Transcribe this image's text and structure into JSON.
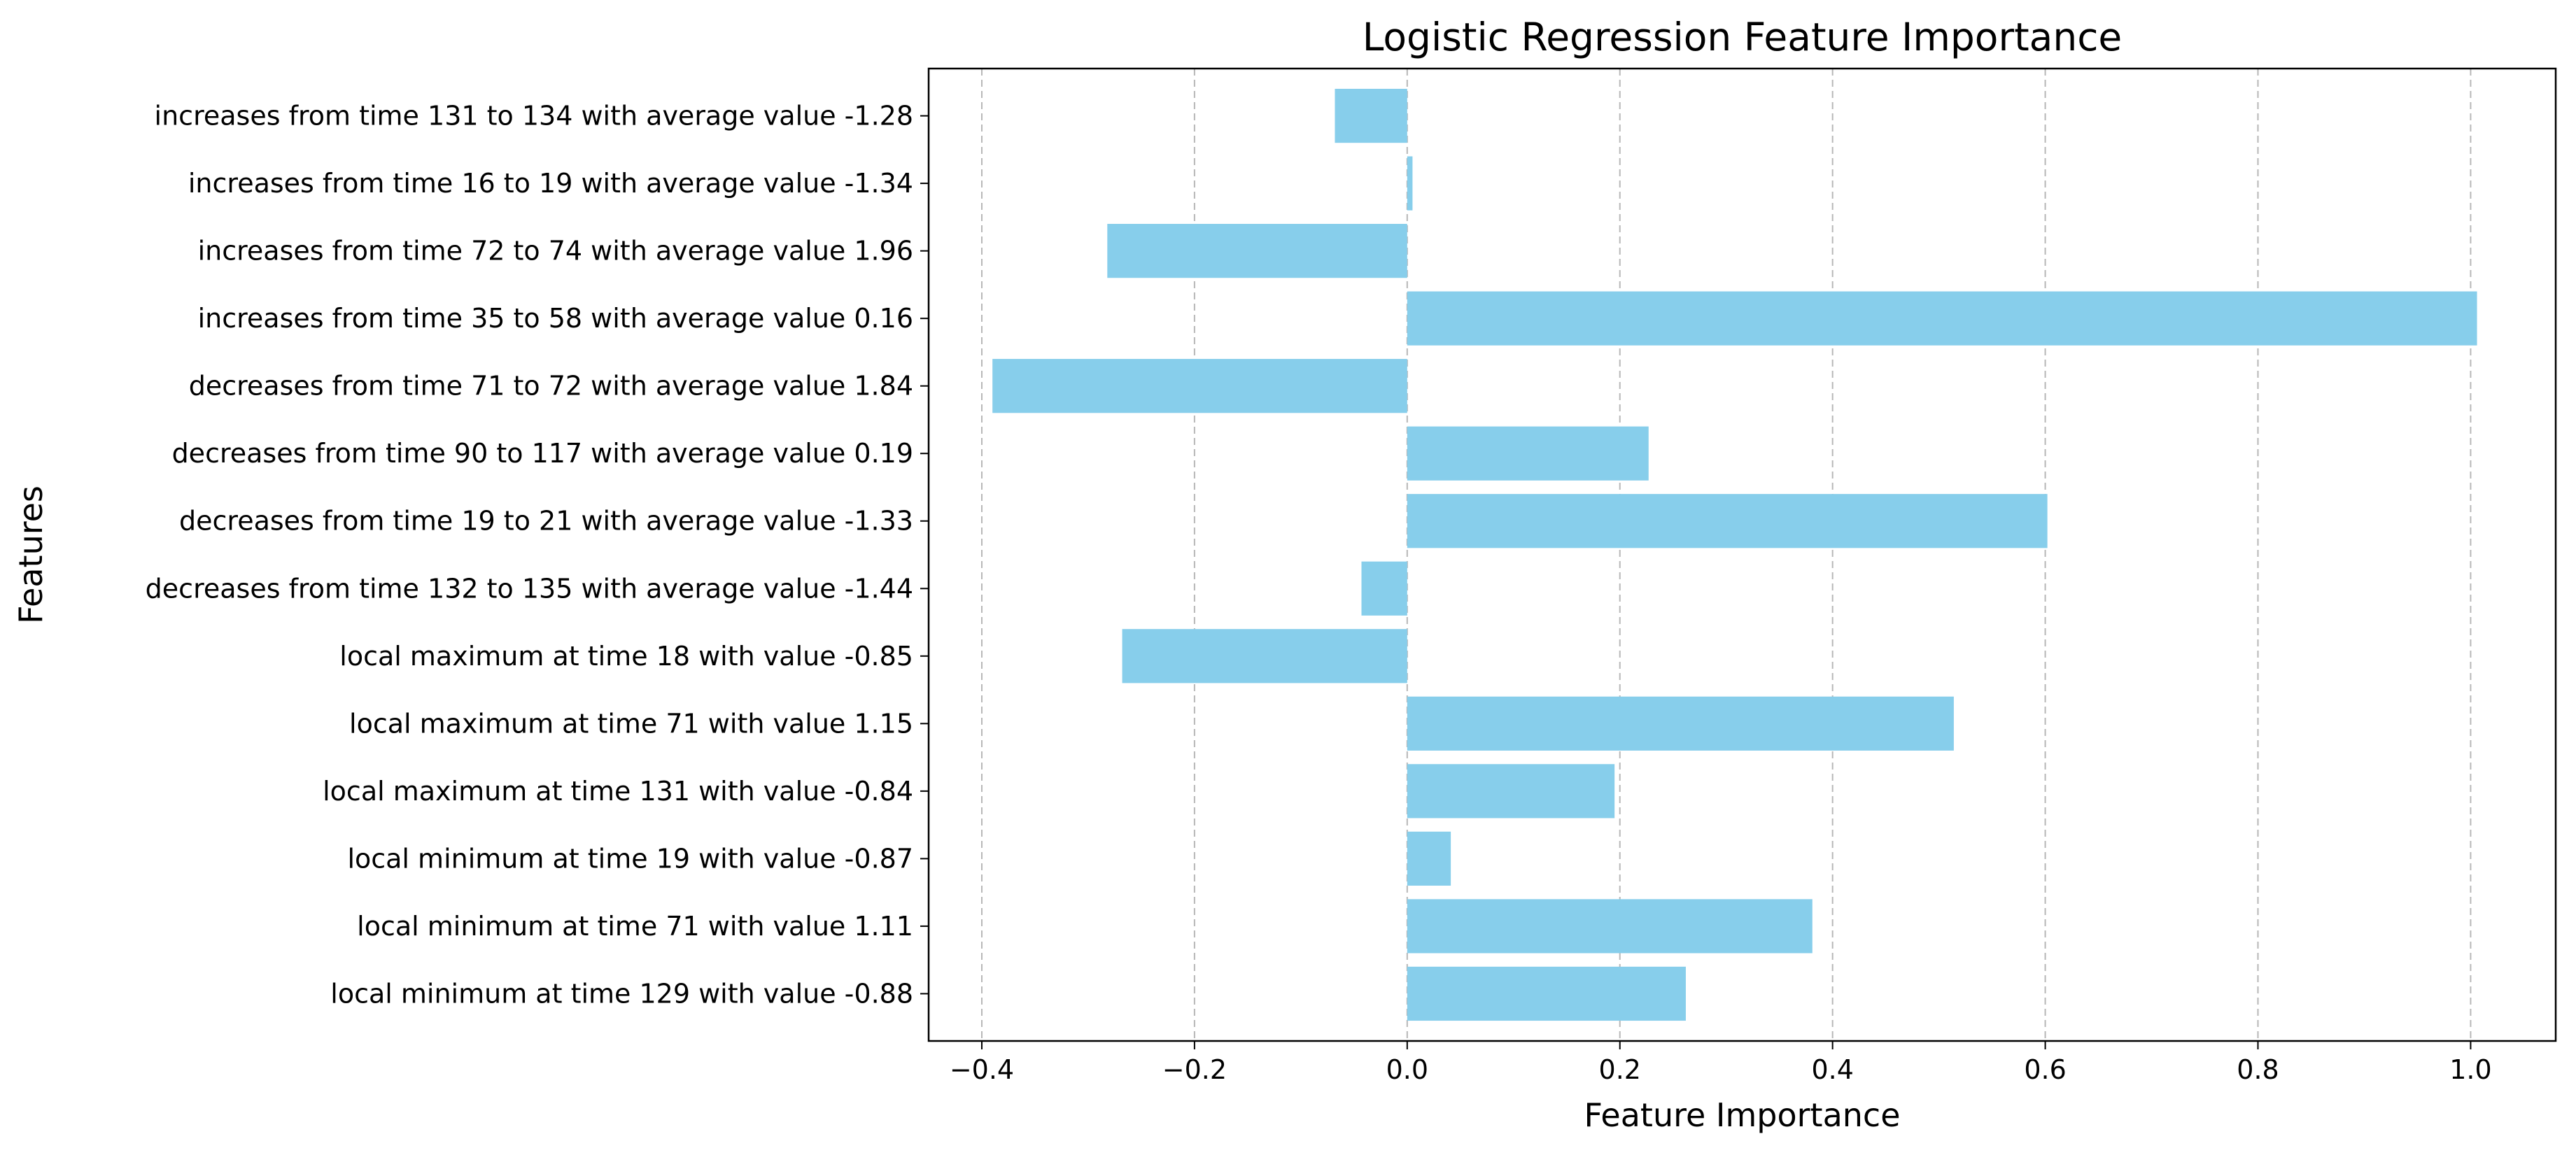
{
  "chart_data": {
    "type": "bar",
    "orientation": "horizontal",
    "title": "Logistic Regression Feature Importance",
    "xlabel": "Feature Importance",
    "ylabel": "Features",
    "xlim": [
      -0.45,
      1.08
    ],
    "xticks": [
      -0.4,
      -0.2,
      0.0,
      0.2,
      0.4,
      0.6,
      0.8,
      1.0
    ],
    "xtick_labels": [
      "−0.4",
      "−0.2",
      "0.0",
      "0.2",
      "0.4",
      "0.6",
      "0.8",
      "1.0"
    ],
    "grid": "x, dashed",
    "bar_color": "#87CEEB",
    "categories": [
      "increases from time 131 to 134 with average value -1.28",
      "increases from time 16 to 19 with average value -1.34",
      "increases from time 72 to 74 with average value 1.96",
      "increases from time 35 to 58 with average value 0.16",
      "decreases from time 71 to 72 with average value 1.84",
      "decreases from time 90 to 117 with average value 0.19",
      "decreases from time 19 to 21 with average value -1.33",
      "decreases from time 132 to 135 with average value -1.44",
      "local maximum at time 18 with value -0.85",
      "local maximum at time 71 with value 1.15",
      "local maximum at time 131 with value -0.84",
      "local minimum at time 19 with value -0.87",
      "local minimum at time 71 with value 1.11",
      "local minimum at time 129 with value -0.88"
    ],
    "values": [
      -0.068,
      0.005,
      -0.282,
      1.006,
      -0.39,
      0.227,
      0.602,
      -0.043,
      -0.268,
      0.514,
      0.195,
      0.041,
      0.381,
      0.262
    ]
  }
}
